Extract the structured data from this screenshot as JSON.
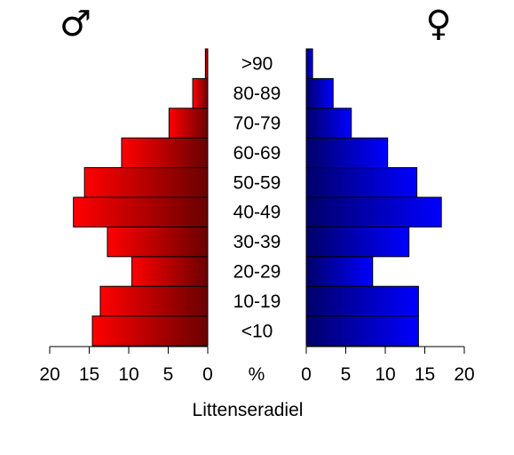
{
  "chart_data": {
    "type": "bar",
    "orientation": "horizontal-pyramid",
    "categories": [
      "<10",
      "10-19",
      "20-29",
      "30-39",
      "40-49",
      "50-59",
      "60-69",
      "70-79",
      "80-89",
      ">90"
    ],
    "series": [
      {
        "name": "♂",
        "side": "left",
        "values": [
          14.6,
          13.6,
          9.6,
          12.7,
          17.0,
          15.6,
          10.9,
          4.9,
          1.9,
          0.3
        ],
        "color_light": "#ff0000",
        "color_dark": "#6a0000"
      },
      {
        "name": "♀",
        "side": "right",
        "values": [
          14.2,
          14.2,
          8.4,
          13.0,
          17.1,
          14.0,
          10.3,
          5.7,
          3.4,
          0.8
        ],
        "color_light": "#0000ff",
        "color_dark": "#00006a"
      }
    ],
    "xlim": [
      0,
      20
    ],
    "xticks": [
      20,
      15,
      10,
      5,
      0
    ],
    "unit_label": "%",
    "xlabel": "Littenseradiel",
    "title": "",
    "grid": false,
    "legend": "none"
  }
}
